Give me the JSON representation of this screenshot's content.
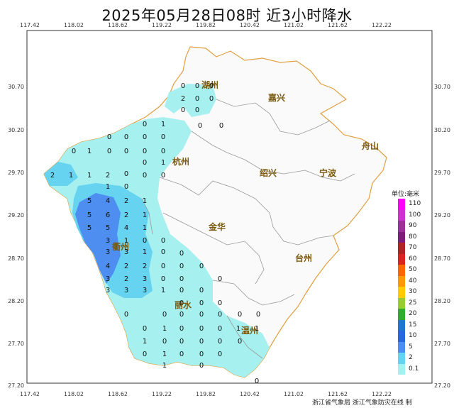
{
  "title": "2025年05月28日08时  近3小时降水",
  "x_ticks": [
    "117.42",
    "118.02",
    "118.62",
    "119.22",
    "119.82",
    "120.42",
    "121.02",
    "121.62",
    "122.22"
  ],
  "y_ticks": [
    "30.70",
    "30.20",
    "29.70",
    "29.20",
    "28.70",
    "28.20",
    "27.70",
    "27.20"
  ],
  "cities": [
    {
      "name": "湖州",
      "key": "huzhou"
    },
    {
      "name": "嘉兴",
      "key": "jiaxing"
    },
    {
      "name": "杭州",
      "key": "hangzhou"
    },
    {
      "name": "绍兴",
      "key": "shaoxing"
    },
    {
      "name": "宁波",
      "key": "ningbo"
    },
    {
      "name": "舟山",
      "key": "zhoushan"
    },
    {
      "name": "金华",
      "key": "jinhua"
    },
    {
      "name": "衢州",
      "key": "quzhou"
    },
    {
      "name": "台州",
      "key": "taizhou"
    },
    {
      "name": "丽水",
      "key": "lishui"
    },
    {
      "name": "温州",
      "key": "wenzhou"
    }
  ],
  "legend": {
    "title": "单位:毫米",
    "items": [
      {
        "label": "110",
        "color": "#ff00ff"
      },
      {
        "label": "100",
        "color": "#cc33cc"
      },
      {
        "label": "90",
        "color": "#993399"
      },
      {
        "label": "80",
        "color": "#7a1f7a"
      },
      {
        "label": "70",
        "color": "#b22222"
      },
      {
        "label": "60",
        "color": "#dd2222"
      },
      {
        "label": "50",
        "color": "#ff6600"
      },
      {
        "label": "40",
        "color": "#ff9900"
      },
      {
        "label": "30",
        "color": "#ffcc00"
      },
      {
        "label": "25",
        "color": "#99cc33"
      },
      {
        "label": "20",
        "color": "#33aa33"
      },
      {
        "label": "15",
        "color": "#2277cc"
      },
      {
        "label": "10",
        "color": "#2a66dd"
      },
      {
        "label": "5",
        "color": "#4d8ef0"
      },
      {
        "label": "2",
        "color": "#66d4f0"
      },
      {
        "label": "0.1",
        "color": "#a6f0f0"
      }
    ]
  },
  "station_values": {
    "huzhou": [
      "0",
      "0",
      "0",
      "2",
      "0",
      "0",
      "0",
      "0",
      "0",
      "0"
    ],
    "west": [
      "0",
      "1",
      "0",
      "0",
      "0",
      "0",
      "0",
      "1",
      "0",
      "0",
      "2",
      "1",
      "1",
      "2",
      "0",
      "0",
      "0",
      "0",
      "1",
      "1",
      "0",
      "0",
      "0"
    ],
    "quzhou": [
      "5",
      "4",
      "2",
      "1",
      "5",
      "6",
      "2",
      "1",
      "5",
      "5",
      "4",
      "1",
      "0",
      "3",
      "1",
      "0",
      "3",
      "3",
      "1",
      "0",
      "4",
      "2",
      "2",
      "0",
      "0",
      "3",
      "2",
      "3",
      "0",
      "3",
      "3",
      "3",
      "1"
    ],
    "south": [
      "0",
      "0",
      "0",
      "0",
      "0",
      "0",
      "0",
      "0",
      "0",
      "0",
      "0",
      "0",
      "0",
      "0",
      "0",
      "0",
      "1",
      "0",
      "0",
      "0",
      "1",
      "1",
      "1",
      "0",
      "0",
      "0",
      "0",
      "0",
      "1",
      "0",
      "0",
      "0",
      "0",
      "0",
      "1",
      "0"
    ],
    "wenzhou_extra": [
      "0"
    ]
  },
  "credit": "浙江省气象局   浙江气象防灾在线  制"
}
